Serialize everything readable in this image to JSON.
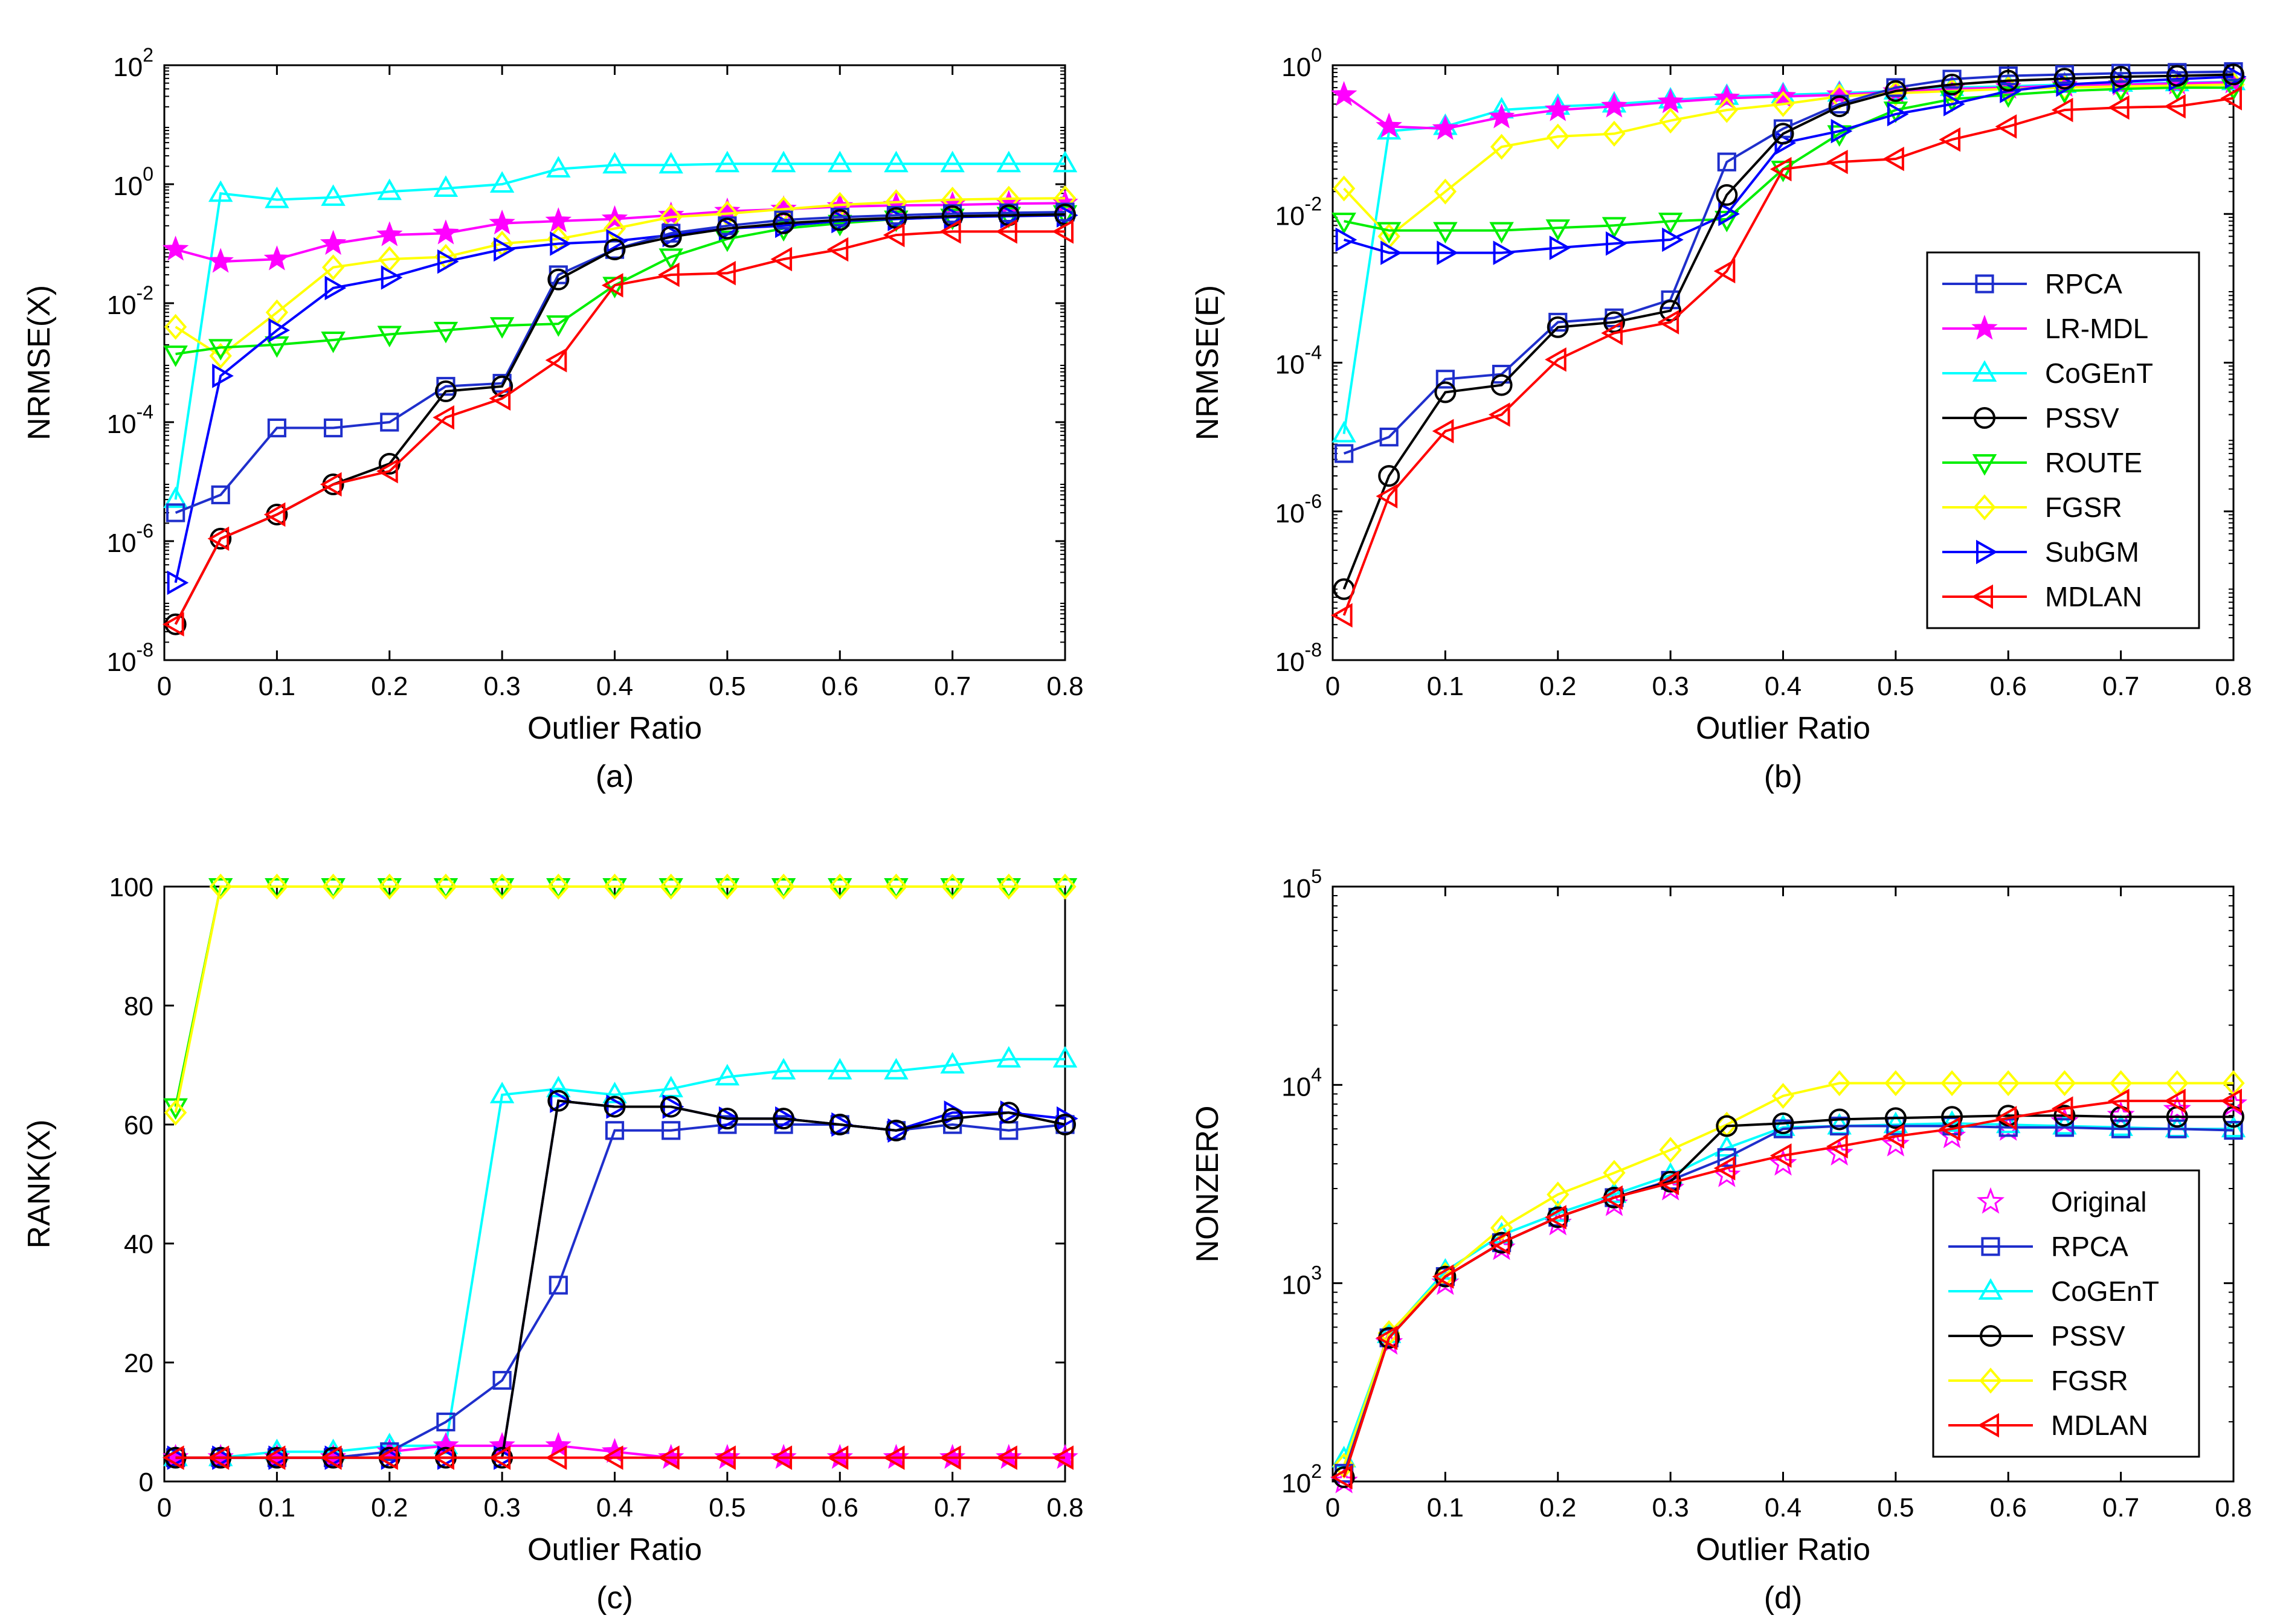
{
  "chart_data": [
    {
      "panel": "a",
      "type": "line",
      "yscale": "log",
      "caption": "(a)",
      "xlabel": "Outlier Ratio",
      "ylabel": "NRMSE(X)",
      "xlim": [
        0,
        0.8
      ],
      "ylim": [
        1e-08,
        100
      ],
      "xticks": [
        0,
        0.1,
        0.2,
        0.3,
        0.4,
        0.5,
        0.6,
        0.7,
        0.8
      ],
      "xtick_labels": [
        "0",
        "0.1",
        "0.2",
        "0.3",
        "0.4",
        "0.5",
        "0.6",
        "0.7",
        "0.8"
      ],
      "yticks": [
        1e-08,
        1e-06,
        0.0001,
        0.01,
        1,
        100
      ],
      "ytick_labels": [
        {
          "base": "10",
          "exp": "-8"
        },
        {
          "base": "10",
          "exp": "-6"
        },
        {
          "base": "10",
          "exp": "-4"
        },
        {
          "base": "10",
          "exp": "-2"
        },
        {
          "base": "10",
          "exp": "0"
        },
        {
          "base": "10",
          "exp": "2"
        }
      ],
      "x": [
        0.01,
        0.05,
        0.1,
        0.15,
        0.2,
        0.25,
        0.3,
        0.35,
        0.4,
        0.45,
        0.5,
        0.55,
        0.6,
        0.65,
        0.7,
        0.75,
        0.8
      ],
      "series": [
        {
          "name": "CoGEnT",
          "color": "#00ffff",
          "marker": "triangle-up",
          "values": [
            5e-06,
            0.7,
            0.55,
            0.6,
            0.75,
            0.85,
            1.0,
            1.8,
            2.1,
            2.1,
            2.2,
            2.2,
            2.2,
            2.2,
            2.2,
            2.2,
            2.2
          ]
        },
        {
          "name": "LR-MDL",
          "color": "#ff00ff",
          "marker": "star",
          "values": [
            0.08,
            0.05,
            0.055,
            0.1,
            0.14,
            0.15,
            0.22,
            0.24,
            0.26,
            0.3,
            0.35,
            0.38,
            0.42,
            0.44,
            0.45,
            0.47,
            0.48
          ]
        },
        {
          "name": "FGSR",
          "color": "#ffff00",
          "marker": "diamond",
          "values": [
            0.004,
            0.0013,
            0.007,
            0.04,
            0.055,
            0.06,
            0.1,
            0.12,
            0.18,
            0.28,
            0.32,
            0.38,
            0.45,
            0.5,
            0.55,
            0.57,
            0.58
          ]
        },
        {
          "name": "ROUTE",
          "color": "#00ee00",
          "marker": "triangle-down",
          "values": [
            0.0014,
            0.0018,
            0.002,
            0.0024,
            0.003,
            0.0035,
            0.0042,
            0.0045,
            0.02,
            0.06,
            0.12,
            0.18,
            0.22,
            0.26,
            0.28,
            0.3,
            0.32
          ]
        },
        {
          "name": "SubGM",
          "color": "#0000ff",
          "marker": "triangle-right",
          "values": [
            2e-07,
            0.0006,
            0.0035,
            0.018,
            0.027,
            0.05,
            0.08,
            0.1,
            0.11,
            0.14,
            0.18,
            0.2,
            0.24,
            0.26,
            0.28,
            0.29,
            0.3
          ]
        },
        {
          "name": "RPCA",
          "color": "#1f2fcc",
          "marker": "square",
          "values": [
            3e-06,
            6e-06,
            8e-05,
            8e-05,
            0.0001,
            0.0004,
            0.00045,
            0.03,
            0.08,
            0.15,
            0.2,
            0.25,
            0.28,
            0.3,
            0.32,
            0.33,
            0.34
          ]
        },
        {
          "name": "PSSV",
          "color": "#000000",
          "marker": "circle",
          "values": [
            4e-08,
            1.1e-06,
            2.8e-06,
            9e-06,
            2e-05,
            0.00033,
            0.0004,
            0.025,
            0.08,
            0.13,
            0.18,
            0.22,
            0.25,
            0.27,
            0.29,
            0.3,
            0.31
          ]
        },
        {
          "name": "MDLAN",
          "color": "#ff0000",
          "marker": "triangle-left",
          "values": [
            4e-08,
            1.1e-06,
            2.8e-06,
            9e-06,
            1.5e-05,
            0.00012,
            0.00025,
            0.0011,
            0.02,
            0.03,
            0.032,
            0.055,
            0.08,
            0.14,
            0.16,
            0.16,
            0.16
          ]
        }
      ]
    },
    {
      "panel": "b",
      "type": "line",
      "yscale": "log",
      "caption": "(b)",
      "xlabel": "Outlier Ratio",
      "ylabel": "NRMSE(E)",
      "xlim": [
        0,
        0.8
      ],
      "ylim": [
        1e-08,
        1
      ],
      "xticks": [
        0,
        0.1,
        0.2,
        0.3,
        0.4,
        0.5,
        0.6,
        0.7,
        0.8
      ],
      "xtick_labels": [
        "0",
        "0.1",
        "0.2",
        "0.3",
        "0.4",
        "0.5",
        "0.6",
        "0.7",
        "0.8"
      ],
      "yticks": [
        1e-08,
        1e-06,
        0.0001,
        0.01,
        1
      ],
      "ytick_labels": [
        {
          "base": "10",
          "exp": "-8"
        },
        {
          "base": "10",
          "exp": "-6"
        },
        {
          "base": "10",
          "exp": "-4"
        },
        {
          "base": "10",
          "exp": "-2"
        },
        {
          "base": "10",
          "exp": "0"
        }
      ],
      "legend": {
        "position": "right",
        "entries": [
          "RPCA",
          "LR-MDL",
          "CoGEnT",
          "PSSV",
          "ROUTE",
          "FGSR",
          "SubGM",
          "MDLAN"
        ]
      },
      "x": [
        0.01,
        0.05,
        0.1,
        0.15,
        0.2,
        0.25,
        0.3,
        0.35,
        0.4,
        0.45,
        0.5,
        0.55,
        0.6,
        0.65,
        0.7,
        0.75,
        0.8
      ],
      "series": [
        {
          "name": "CoGEnT",
          "color": "#00ffff",
          "marker": "triangle-up",
          "values": [
            1.1e-05,
            0.13,
            0.15,
            0.25,
            0.28,
            0.3,
            0.34,
            0.38,
            0.4,
            0.42,
            0.45,
            0.5,
            0.52,
            0.55,
            0.57,
            0.58,
            0.6
          ]
        },
        {
          "name": "LR-MDL",
          "color": "#ff00ff",
          "marker": "star",
          "values": [
            0.4,
            0.15,
            0.14,
            0.2,
            0.25,
            0.28,
            0.32,
            0.36,
            0.38,
            0.4,
            0.44,
            0.48,
            0.5,
            0.53,
            0.55,
            0.57,
            0.59
          ]
        },
        {
          "name": "FGSR",
          "color": "#ffff00",
          "marker": "diamond",
          "values": [
            0.022,
            0.005,
            0.02,
            0.08,
            0.11,
            0.12,
            0.18,
            0.25,
            0.3,
            0.38,
            0.42,
            0.45,
            0.48,
            0.5,
            0.52,
            0.53,
            0.55
          ]
        },
        {
          "name": "ROUTE",
          "color": "#00ee00",
          "marker": "triangle-down",
          "values": [
            0.008,
            0.006,
            0.006,
            0.006,
            0.0065,
            0.007,
            0.008,
            0.0085,
            0.04,
            0.12,
            0.25,
            0.35,
            0.4,
            0.45,
            0.48,
            0.5,
            0.5
          ]
        },
        {
          "name": "SubGM",
          "color": "#0000ff",
          "marker": "triangle-right",
          "values": [
            0.0045,
            0.003,
            0.003,
            0.003,
            0.0035,
            0.004,
            0.0045,
            0.01,
            0.09,
            0.13,
            0.22,
            0.3,
            0.45,
            0.55,
            0.6,
            0.65,
            0.7
          ]
        },
        {
          "name": "RPCA",
          "color": "#1f2fcc",
          "marker": "square",
          "values": [
            6e-06,
            1e-05,
            6e-05,
            7e-05,
            0.00035,
            0.0004,
            0.0007,
            0.05,
            0.14,
            0.3,
            0.5,
            0.65,
            0.72,
            0.75,
            0.78,
            0.8,
            0.82
          ]
        },
        {
          "name": "PSSV",
          "color": "#000000",
          "marker": "circle",
          "values": [
            9e-08,
            3e-06,
            4e-05,
            5e-05,
            0.0003,
            0.00035,
            0.0005,
            0.018,
            0.12,
            0.28,
            0.45,
            0.55,
            0.62,
            0.66,
            0.7,
            0.72,
            0.75
          ]
        },
        {
          "name": "MDLAN",
          "color": "#ff0000",
          "marker": "triangle-left",
          "values": [
            4e-08,
            1.6e-06,
            1.2e-05,
            2e-05,
            0.00011,
            0.00025,
            0.00035,
            0.0017,
            0.04,
            0.05,
            0.055,
            0.1,
            0.15,
            0.25,
            0.27,
            0.28,
            0.36
          ]
        }
      ]
    },
    {
      "panel": "c",
      "type": "line",
      "yscale": "linear",
      "caption": "(c)",
      "xlabel": "Outlier Ratio",
      "ylabel": "RANK(X)",
      "xlim": [
        0,
        0.8
      ],
      "ylim": [
        0,
        100
      ],
      "xticks": [
        0,
        0.1,
        0.2,
        0.3,
        0.4,
        0.5,
        0.6,
        0.7,
        0.8
      ],
      "xtick_labels": [
        "0",
        "0.1",
        "0.2",
        "0.3",
        "0.4",
        "0.5",
        "0.6",
        "0.7",
        "0.8"
      ],
      "yticks": [
        0,
        20,
        40,
        60,
        80,
        100
      ],
      "ytick_labels": [
        "0",
        "20",
        "40",
        "60",
        "80",
        "100"
      ],
      "x": [
        0.01,
        0.05,
        0.1,
        0.15,
        0.2,
        0.25,
        0.3,
        0.35,
        0.4,
        0.45,
        0.5,
        0.55,
        0.6,
        0.65,
        0.7,
        0.75,
        0.8
      ],
      "series": [
        {
          "name": "ROUTE",
          "color": "#00ee00",
          "marker": "triangle-down",
          "values": [
            63,
            100,
            100,
            100,
            100,
            100,
            100,
            100,
            100,
            100,
            100,
            100,
            100,
            100,
            100,
            100,
            100
          ]
        },
        {
          "name": "FGSR",
          "color": "#ffff00",
          "marker": "diamond",
          "values": [
            62,
            100,
            100,
            100,
            100,
            100,
            100,
            100,
            100,
            100,
            100,
            100,
            100,
            100,
            100,
            100,
            100
          ]
        },
        {
          "name": "CoGEnT",
          "color": "#00ffff",
          "marker": "triangle-up",
          "values": [
            4,
            4,
            5,
            5,
            6,
            6,
            65,
            66,
            65,
            66,
            68,
            69,
            69,
            69,
            70,
            71,
            71
          ]
        },
        {
          "name": "LR-MDL",
          "color": "#ff00ff",
          "marker": "star",
          "values": [
            4,
            4,
            4,
            4,
            5,
            6,
            6,
            6,
            5,
            4,
            4,
            4,
            4,
            4,
            4,
            4,
            4
          ]
        },
        {
          "name": "RPCA",
          "color": "#1f2fcc",
          "marker": "square",
          "values": [
            4,
            4,
            4,
            4,
            5,
            10,
            17,
            33,
            59,
            59,
            60,
            60,
            60,
            59,
            60,
            59,
            60
          ]
        },
        {
          "name": "SubGM",
          "color": "#0000ff",
          "marker": "triangle-right",
          "values": [
            4,
            4,
            4,
            4,
            4,
            4,
            4,
            64,
            63,
            63,
            61,
            61,
            60,
            59,
            62,
            62,
            61
          ]
        },
        {
          "name": "PSSV",
          "color": "#000000",
          "marker": "circle",
          "values": [
            4,
            4,
            4,
            4,
            4,
            4,
            4,
            64,
            63,
            63,
            61,
            61,
            60,
            59,
            61,
            62,
            60
          ]
        },
        {
          "name": "MDLAN",
          "color": "#ff0000",
          "marker": "triangle-left",
          "values": [
            4,
            4,
            4,
            4,
            4,
            4,
            4,
            4,
            4,
            4,
            4,
            4,
            4,
            4,
            4,
            4,
            4
          ]
        }
      ]
    },
    {
      "panel": "d",
      "type": "line",
      "yscale": "log",
      "caption": "(d)",
      "xlabel": "Outlier Ratio",
      "ylabel": "NONZERO",
      "xlim": [
        0,
        0.8
      ],
      "ylim": [
        100,
        100000
      ],
      "xticks": [
        0,
        0.1,
        0.2,
        0.3,
        0.4,
        0.5,
        0.6,
        0.7,
        0.8
      ],
      "xtick_labels": [
        "0",
        "0.1",
        "0.2",
        "0.3",
        "0.4",
        "0.5",
        "0.6",
        "0.7",
        "0.8"
      ],
      "yticks": [
        100,
        1000,
        10000,
        100000
      ],
      "ytick_labels": [
        {
          "base": "10",
          "exp": "2"
        },
        {
          "base": "10",
          "exp": "3"
        },
        {
          "base": "10",
          "exp": "4"
        },
        {
          "base": "10",
          "exp": "5"
        }
      ],
      "legend": {
        "position": "right",
        "entries": [
          "Original",
          "RPCA",
          "CoGEnT",
          "PSSV",
          "FGSR",
          "MDLAN"
        ]
      },
      "x": [
        0.01,
        0.05,
        0.1,
        0.15,
        0.2,
        0.25,
        0.3,
        0.35,
        0.4,
        0.45,
        0.5,
        0.55,
        0.6,
        0.65,
        0.7,
        0.75,
        0.8
      ],
      "series": [
        {
          "name": "Original",
          "color": "#ff00ff",
          "marker": "star-open",
          "values": [
            100,
            500,
            1000,
            1500,
            2000,
            2500,
            3000,
            3500,
            4000,
            4500,
            5000,
            5500,
            6000,
            6500,
            7000,
            7500,
            8000
          ]
        },
        {
          "name": "CoGEnT",
          "color": "#00ffff",
          "marker": "triangle-up",
          "values": [
            130,
            550,
            1150,
            1750,
            2250,
            2800,
            3500,
            4800,
            6100,
            6200,
            6300,
            6400,
            6300,
            6200,
            6100,
            6000,
            6000
          ]
        },
        {
          "name": "FGSR",
          "color": "#ffff00",
          "marker": "diamond",
          "values": [
            120,
            560,
            1100,
            1900,
            2800,
            3600,
            4700,
            6300,
            8800,
            10200,
            10200,
            10200,
            10200,
            10200,
            10200,
            10200,
            10200
          ]
        },
        {
          "name": "RPCA",
          "color": "#1f2fcc",
          "marker": "square",
          "values": [
            110,
            530,
            1080,
            1600,
            2150,
            2700,
            3300,
            4300,
            6000,
            6200,
            6200,
            6200,
            6100,
            6100,
            6000,
            6000,
            5900
          ]
        },
        {
          "name": "PSSV",
          "color": "#000000",
          "marker": "circle",
          "values": [
            105,
            530,
            1080,
            1600,
            2150,
            2700,
            3250,
            6200,
            6400,
            6700,
            6800,
            6900,
            7000,
            7000,
            6900,
            6900,
            6900
          ]
        },
        {
          "name": "MDLAN",
          "color": "#ff0000",
          "marker": "triangle-left",
          "values": [
            105,
            530,
            1080,
            1600,
            2150,
            2700,
            3200,
            3800,
            4400,
            4900,
            5500,
            6000,
            6800,
            7600,
            8300,
            8300,
            8300
          ]
        }
      ]
    }
  ]
}
